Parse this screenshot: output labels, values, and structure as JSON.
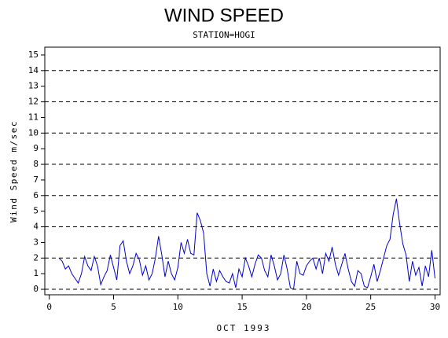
{
  "chart_data": {
    "type": "line",
    "title": "WIND SPEED",
    "subtitle": "STATION=HOGI",
    "x_label": "OCT 1993",
    "y_label": "Wind Speed m/sec",
    "x": [
      0.75,
      1,
      1.25,
      1.5,
      1.75,
      2,
      2.25,
      2.5,
      2.75,
      3,
      3.25,
      3.5,
      3.75,
      4,
      4.25,
      4.5,
      4.75,
      5,
      5.25,
      5.5,
      5.75,
      6,
      6.25,
      6.5,
      6.75,
      7,
      7.25,
      7.5,
      7.75,
      8,
      8.25,
      8.5,
      8.75,
      9,
      9.25,
      9.5,
      9.75,
      10,
      10.25,
      10.5,
      10.75,
      11,
      11.25,
      11.5,
      11.75,
      12,
      12.25,
      12.5,
      12.75,
      13,
      13.25,
      13.5,
      13.75,
      14,
      14.25,
      14.5,
      14.75,
      15,
      15.25,
      15.5,
      15.75,
      16,
      16.25,
      16.5,
      16.75,
      17,
      17.25,
      17.5,
      17.75,
      18,
      18.25,
      18.5,
      18.75,
      19,
      19.25,
      19.5,
      19.75,
      20,
      20.25,
      20.5,
      20.75,
      21,
      21.25,
      21.5,
      21.75,
      22,
      22.25,
      22.5,
      22.75,
      23,
      23.25,
      23.5,
      23.75,
      24,
      24.25,
      24.5,
      24.75,
      25,
      25.25,
      25.5,
      25.75,
      26,
      26.25,
      26.5,
      26.75,
      27,
      27.25,
      27.5,
      27.75,
      28,
      28.25,
      28.5,
      28.75,
      29,
      29.25,
      29.5,
      29.75,
      30
    ],
    "values": [
      2.0,
      1.8,
      1.3,
      1.5,
      1.0,
      0.7,
      0.4,
      1.0,
      2.1,
      1.5,
      1.2,
      2.1,
      1.5,
      0.3,
      0.8,
      1.2,
      2.2,
      1.4,
      0.6,
      2.8,
      3.1,
      1.8,
      1.0,
      1.5,
      2.3,
      1.9,
      0.9,
      1.5,
      0.6,
      1.0,
      2.0,
      3.4,
      2.2,
      0.8,
      1.8,
      1.0,
      0.6,
      1.4,
      3.0,
      2.3,
      3.2,
      2.3,
      2.2,
      4.9,
      4.4,
      3.6,
      1.0,
      0.2,
      1.3,
      0.5,
      1.2,
      0.8,
      0.5,
      0.4,
      1.0,
      0.1,
      1.3,
      0.8,
      2.0,
      1.5,
      0.8,
      1.6,
      2.2,
      2.0,
      1.2,
      0.8,
      2.2,
      1.5,
      0.6,
      1.0,
      2.2,
      1.3,
      0.1,
      0.0,
      1.8,
      1.0,
      0.9,
      1.5,
      1.8,
      2.0,
      1.3,
      2.0,
      1.0,
      2.3,
      1.8,
      2.7,
      1.6,
      0.9,
      1.6,
      2.3,
      1.3,
      0.5,
      0.2,
      1.2,
      1.0,
      0.2,
      0.1,
      0.8,
      1.6,
      0.5,
      1.2,
      2.0,
      2.8,
      3.2,
      4.8,
      5.8,
      4.2,
      2.9,
      2.2,
      0.5,
      1.8,
      0.9,
      1.4,
      0.2,
      1.5,
      0.8,
      2.5,
      0.7
    ],
    "color": "#0000cc",
    "xlim": [
      -0.35,
      30.4
    ],
    "xticks": [
      0,
      5,
      10,
      15,
      20,
      25,
      30
    ],
    "ylim": [
      -0.35,
      15.5
    ],
    "yticks": [
      0,
      1,
      2,
      3,
      4,
      5,
      6,
      7,
      8,
      9,
      10,
      11,
      12,
      13,
      14,
      15
    ],
    "ygrid": [
      0,
      2,
      4,
      6,
      8,
      10,
      12,
      14
    ]
  }
}
